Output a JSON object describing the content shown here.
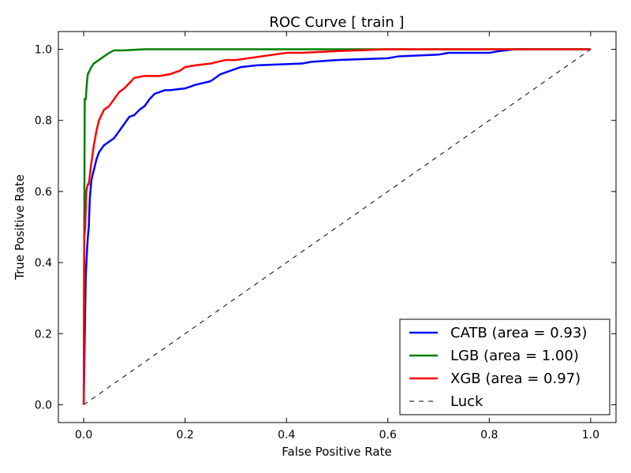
{
  "chart_data": {
    "type": "line",
    "title": "ROC Curve [ train ]",
    "xlabel": "False Positive Rate",
    "ylabel": "True Positive Rate",
    "xlim": [
      -0.05,
      1.05
    ],
    "ylim": [
      -0.05,
      1.05
    ],
    "xticks": [
      0.0,
      0.2,
      0.4,
      0.6,
      0.8,
      1.0
    ],
    "yticks": [
      0.0,
      0.2,
      0.4,
      0.6,
      0.8,
      1.0
    ],
    "xtick_labels": [
      "0.0",
      "0.2",
      "0.4",
      "0.6",
      "0.8",
      "1.0"
    ],
    "ytick_labels": [
      "0.0",
      "0.2",
      "0.4",
      "0.6",
      "0.8",
      "1.0"
    ],
    "grid": false,
    "legend_position": "bottom-right",
    "series": [
      {
        "name": "CATB (area = 0.93)",
        "color": "#0000ff",
        "style": "solid",
        "x": [
          0.0,
          0.002,
          0.004,
          0.006,
          0.008,
          0.01,
          0.012,
          0.015,
          0.018,
          0.02,
          0.025,
          0.03,
          0.04,
          0.05,
          0.06,
          0.07,
          0.08,
          0.09,
          0.1,
          0.11,
          0.12,
          0.13,
          0.14,
          0.15,
          0.16,
          0.17,
          0.2,
          0.22,
          0.25,
          0.27,
          0.29,
          0.31,
          0.34,
          0.43,
          0.45,
          0.5,
          0.6,
          0.62,
          0.7,
          0.72,
          0.8,
          0.82,
          0.85,
          1.0
        ],
        "y": [
          0.0,
          0.19,
          0.36,
          0.42,
          0.47,
          0.5,
          0.58,
          0.63,
          0.65,
          0.66,
          0.69,
          0.71,
          0.73,
          0.74,
          0.75,
          0.77,
          0.79,
          0.81,
          0.815,
          0.83,
          0.84,
          0.86,
          0.875,
          0.88,
          0.885,
          0.885,
          0.89,
          0.9,
          0.91,
          0.93,
          0.94,
          0.95,
          0.955,
          0.96,
          0.965,
          0.97,
          0.975,
          0.98,
          0.985,
          0.99,
          0.99,
          0.995,
          1.0,
          1.0
        ]
      },
      {
        "name": "LGB (area = 1.00)",
        "color": "#008000",
        "style": "solid",
        "x": [
          0.0,
          0.001,
          0.002,
          0.004,
          0.006,
          0.008,
          0.01,
          0.015,
          0.02,
          0.03,
          0.04,
          0.05,
          0.06,
          0.08,
          0.12,
          1.0
        ],
        "y": [
          0.0,
          0.47,
          0.86,
          0.86,
          0.9,
          0.93,
          0.935,
          0.95,
          0.96,
          0.97,
          0.98,
          0.99,
          0.997,
          0.997,
          1.0,
          1.0
        ]
      },
      {
        "name": "XGB (area = 0.97)",
        "color": "#ff0000",
        "style": "solid",
        "x": [
          0.0,
          0.001,
          0.003,
          0.005,
          0.008,
          0.01,
          0.015,
          0.02,
          0.025,
          0.03,
          0.04,
          0.05,
          0.06,
          0.07,
          0.08,
          0.1,
          0.12,
          0.15,
          0.17,
          0.19,
          0.2,
          0.22,
          0.25,
          0.28,
          0.3,
          0.35,
          0.4,
          0.43,
          0.5,
          0.6,
          1.0
        ],
        "y": [
          0.0,
          0.47,
          0.5,
          0.6,
          0.62,
          0.62,
          0.68,
          0.73,
          0.77,
          0.8,
          0.83,
          0.84,
          0.86,
          0.88,
          0.89,
          0.92,
          0.925,
          0.925,
          0.93,
          0.94,
          0.95,
          0.955,
          0.96,
          0.97,
          0.97,
          0.98,
          0.99,
          0.99,
          0.995,
          1.0,
          1.0
        ]
      },
      {
        "name": "Luck",
        "color": "#000000",
        "style": "dashed",
        "x": [
          0.0,
          1.0
        ],
        "y": [
          0.0,
          1.0
        ]
      }
    ]
  }
}
